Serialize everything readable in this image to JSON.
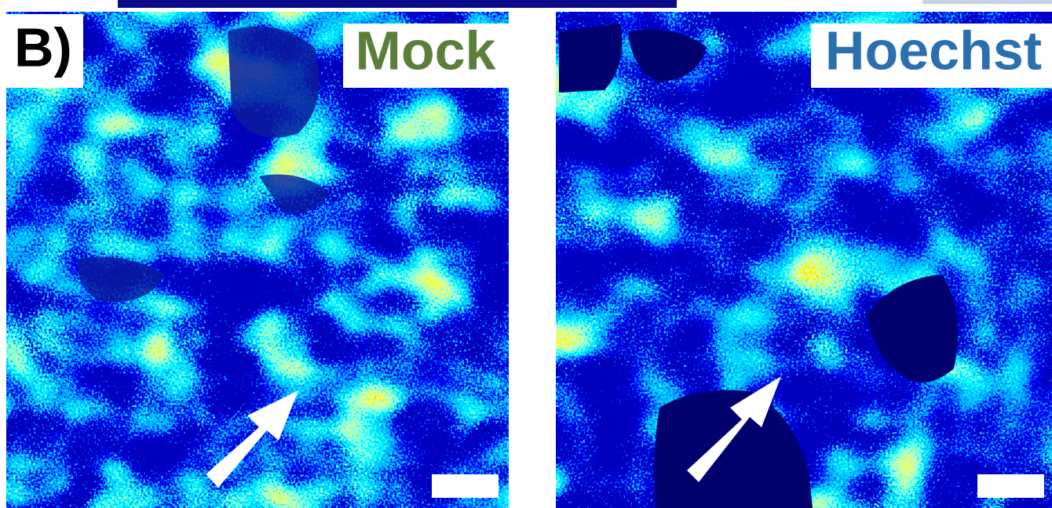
{
  "panel_label": "B)",
  "panels": [
    {
      "label": "Mock"
    },
    {
      "label": "Hoechst"
    }
  ]
}
